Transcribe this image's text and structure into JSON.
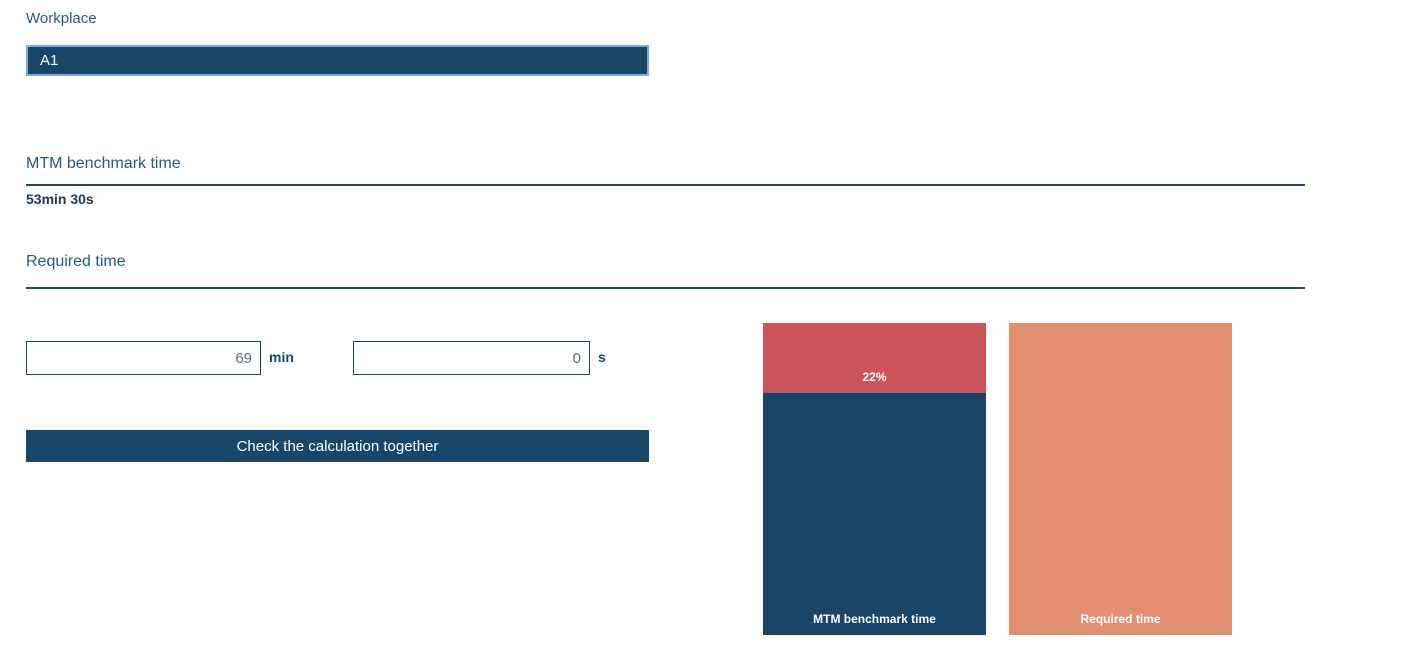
{
  "workplace": {
    "label": "Workplace",
    "selected_option": "A1"
  },
  "mtm_benchmark": {
    "heading": "MTM benchmark time",
    "value": "53min 30s"
  },
  "required_time": {
    "heading": "Required time"
  },
  "form": {
    "minutes_input": {
      "value": "69",
      "unit_label": "min"
    },
    "seconds_input": {
      "value": "0",
      "unit_label": "s"
    },
    "submit_label": "Check the calculation together"
  },
  "colors": {
    "primary_navy": "#17466A",
    "heading_blue": "#1E5B7E",
    "select_border": "#7EA9DB",
    "chart_red": "#CB545B",
    "chart_navy": "#1A4568",
    "chart_orange": "#E28E70"
  },
  "chart_data": {
    "type": "bar",
    "subtype": "stacked-comparison",
    "categories": [
      "MTM benchmark time",
      "Required time"
    ],
    "values": {
      "mtm_benchmark_time": "53min 30s",
      "required_time": "69min 0s",
      "difference_label": "22%"
    },
    "bars": [
      {
        "name": "mtm-benchmark-bar",
        "segments": [
          {
            "name": "difference-segment",
            "label": "22%",
            "label_position": "inside-bottom",
            "height_pct": 22.5,
            "color": "#CB545B"
          },
          {
            "name": "mtm-benchmark-segment",
            "label": "MTM benchmark time",
            "label_position": "inside-bottom",
            "height_pct": 77.5,
            "color": "#1A4568"
          }
        ]
      },
      {
        "name": "required-time-bar",
        "segments": [
          {
            "name": "required-time-segment",
            "label": "Required time",
            "label_position": "inside-bottom",
            "height_pct": 100,
            "color": "#E28E70"
          }
        ]
      }
    ],
    "layout": {
      "gridlines": false,
      "axes_visible": false,
      "legend": "none"
    }
  }
}
